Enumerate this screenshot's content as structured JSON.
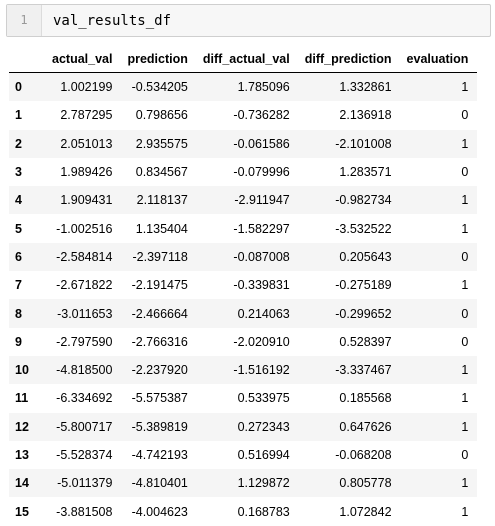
{
  "input_cell": {
    "line_number": "1",
    "code": "val_results_df"
  },
  "table": {
    "index_header": "",
    "columns": [
      "actual_val",
      "prediction",
      "diff_actual_val",
      "diff_prediction",
      "evaluation"
    ],
    "rows": [
      {
        "index": "0",
        "cells": [
          "1.002199",
          "-0.534205",
          "1.785096",
          "1.332861",
          "1"
        ]
      },
      {
        "index": "1",
        "cells": [
          "2.787295",
          "0.798656",
          "-0.736282",
          "2.136918",
          "0"
        ]
      },
      {
        "index": "2",
        "cells": [
          "2.051013",
          "2.935575",
          "-0.061586",
          "-2.101008",
          "1"
        ]
      },
      {
        "index": "3",
        "cells": [
          "1.989426",
          "0.834567",
          "-0.079996",
          "1.283571",
          "0"
        ]
      },
      {
        "index": "4",
        "cells": [
          "1.909431",
          "2.118137",
          "-2.911947",
          "-0.982734",
          "1"
        ]
      },
      {
        "index": "5",
        "cells": [
          "-1.002516",
          "1.135404",
          "-1.582297",
          "-3.532522",
          "1"
        ]
      },
      {
        "index": "6",
        "cells": [
          "-2.584814",
          "-2.397118",
          "-0.087008",
          "0.205643",
          "0"
        ]
      },
      {
        "index": "7",
        "cells": [
          "-2.671822",
          "-2.191475",
          "-0.339831",
          "-0.275189",
          "1"
        ]
      },
      {
        "index": "8",
        "cells": [
          "-3.011653",
          "-2.466664",
          "0.214063",
          "-0.299652",
          "0"
        ]
      },
      {
        "index": "9",
        "cells": [
          "-2.797590",
          "-2.766316",
          "-2.020910",
          "0.528397",
          "0"
        ]
      },
      {
        "index": "10",
        "cells": [
          "-4.818500",
          "-2.237920",
          "-1.516192",
          "-3.337467",
          "1"
        ]
      },
      {
        "index": "11",
        "cells": [
          "-6.334692",
          "-5.575387",
          "0.533975",
          "0.185568",
          "1"
        ]
      },
      {
        "index": "12",
        "cells": [
          "-5.800717",
          "-5.389819",
          "0.272343",
          "0.647626",
          "1"
        ]
      },
      {
        "index": "13",
        "cells": [
          "-5.528374",
          "-4.742193",
          "0.516994",
          "-0.068208",
          "0"
        ]
      },
      {
        "index": "14",
        "cells": [
          "-5.011379",
          "-4.810401",
          "1.129872",
          "0.805778",
          "1"
        ]
      },
      {
        "index": "15",
        "cells": [
          "-3.881508",
          "-4.004623",
          "0.168783",
          "1.072842",
          "1"
        ]
      }
    ]
  }
}
